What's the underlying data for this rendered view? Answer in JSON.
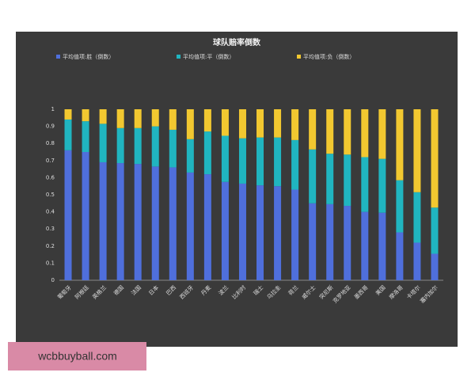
{
  "chart_data": {
    "type": "stacked_bar",
    "title": "球队赔率倒数",
    "categories": [
      "葡萄牙",
      "阿根廷",
      "英格兰",
      "德国",
      "法国",
      "日本",
      "巴西",
      "西班牙",
      "丹麦",
      "波兰",
      "比利时",
      "瑞士",
      "乌拉圭",
      "荷兰",
      "威尔士",
      "突尼斯",
      "克罗地亚",
      "墨西哥",
      "美国",
      "摩洛哥",
      "卡塔尔",
      "塞内加尔"
    ],
    "series": [
      {
        "name": "平均值项:胜（倒数）",
        "color": "#4f6fdc",
        "values": [
          0.76,
          0.75,
          0.69,
          0.685,
          0.68,
          0.665,
          0.66,
          0.63,
          0.62,
          0.575,
          0.565,
          0.555,
          0.55,
          0.53,
          0.45,
          0.445,
          0.435,
          0.4,
          0.395,
          0.28,
          0.22,
          0.155
        ]
      },
      {
        "name": "平均值项:平（倒数）",
        "color": "#20b5c0",
        "values": [
          0.18,
          0.18,
          0.225,
          0.205,
          0.21,
          0.235,
          0.22,
          0.195,
          0.25,
          0.27,
          0.265,
          0.28,
          0.285,
          0.29,
          0.315,
          0.295,
          0.3,
          0.32,
          0.315,
          0.305,
          0.295,
          0.27
        ]
      },
      {
        "name": "平均值项:负（倒数）",
        "color": "#f2c830",
        "values": [
          0.06,
          0.07,
          0.085,
          0.11,
          0.11,
          0.1,
          0.12,
          0.175,
          0.13,
          0.155,
          0.17,
          0.165,
          0.165,
          0.18,
          0.235,
          0.26,
          0.265,
          0.28,
          0.29,
          0.415,
          0.485,
          0.575
        ]
      }
    ],
    "ylim": [
      0,
      1
    ],
    "yticks": [
      0,
      0.1,
      0.2,
      0.3,
      0.4,
      0.5,
      0.6,
      0.7,
      0.8,
      0.9,
      1
    ],
    "grid": false
  },
  "watermark": "wcbbuyball.com"
}
